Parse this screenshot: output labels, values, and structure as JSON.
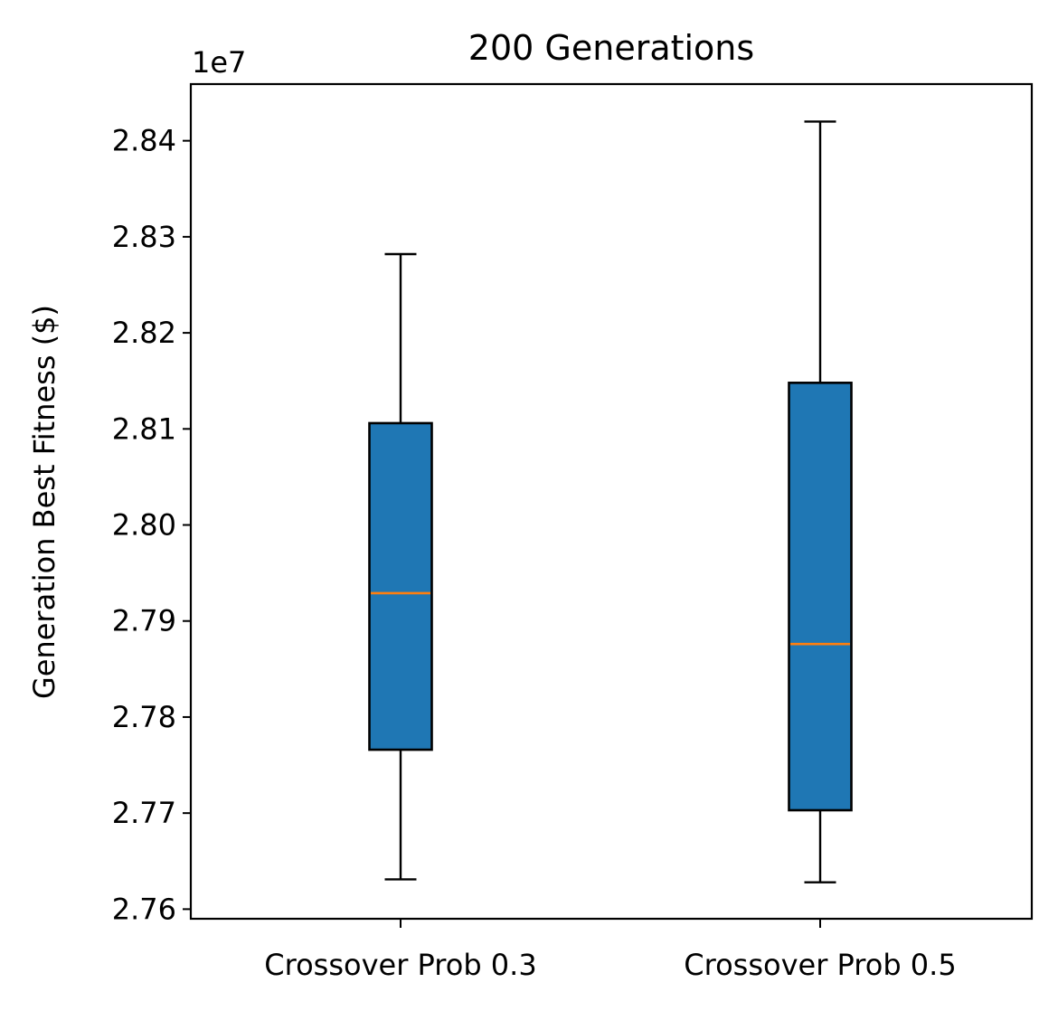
{
  "chart_data": {
    "type": "box",
    "title": "200 Generations",
    "xlabel": "",
    "ylabel": "Generation Best Fitness ($)",
    "offset_text": "1e7",
    "categories": [
      "Crossover Prob 0.3",
      "Crossover Prob 0.5"
    ],
    "ylim": [
      2.759,
      2.8459
    ],
    "yticks": [
      2.76,
      2.77,
      2.78,
      2.79,
      2.8,
      2.81,
      2.82,
      2.83,
      2.84
    ],
    "ytick_labels": [
      "2.76",
      "2.77",
      "2.78",
      "2.79",
      "2.80",
      "2.81",
      "2.82",
      "2.83",
      "2.84"
    ],
    "scale_note": "values in units of 1e7",
    "boxes": [
      {
        "category": "Crossover Prob 0.3",
        "whisker_low": 2.7631,
        "q1": 2.7766,
        "median": 2.7929,
        "q3": 2.8106,
        "whisker_high": 2.8282
      },
      {
        "category": "Crossover Prob 0.5",
        "whisker_low": 2.7628,
        "q1": 2.7703,
        "median": 2.7876,
        "q3": 2.8148,
        "whisker_high": 2.842
      }
    ],
    "box_color": "#1f77b4",
    "median_color": "#ff7f0e",
    "grid": false,
    "legend": "none"
  }
}
